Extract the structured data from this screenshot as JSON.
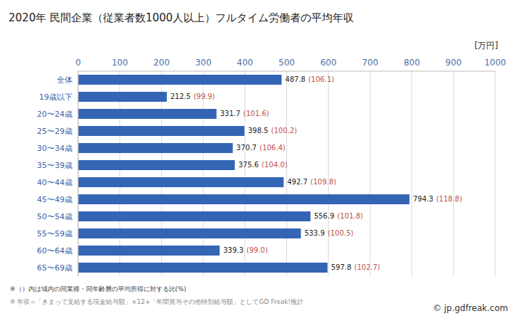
{
  "chart_data": {
    "type": "bar",
    "title": "2020年 民間企業（従業者数1000人以上）フルタイム労働者の平均年収",
    "x_label": "[万円]",
    "categories": [
      "全体",
      "19歳以下",
      "20〜24歳",
      "25〜29歳",
      "30〜34歳",
      "35〜39歳",
      "40〜44歳",
      "45〜49歳",
      "50〜54歳",
      "55〜59歳",
      "60〜64歳",
      "65〜69歳"
    ],
    "values": [
      487.8,
      212.5,
      331.7,
      398.5,
      370.7,
      375.6,
      492.7,
      794.3,
      556.9,
      533.9,
      339.3,
      597.8
    ],
    "ratios": [
      106.1,
      99.9,
      101.6,
      100.2,
      106.4,
      104.0,
      109.8,
      118.8,
      101.8,
      100.5,
      99.0,
      102.7
    ],
    "ratio_labels": [
      "(106.1)",
      "(99.9)",
      "(101.6)",
      "(100.2)",
      "(106.4)",
      "(104.0)",
      "(109.8)",
      "(118.8)",
      "(101.8)",
      "(100.5)",
      "(99.0)",
      "(102.7)"
    ],
    "color": "#3465b5",
    "orientation": "horizontal",
    "xlim": [
      0,
      1000
    ],
    "xticks": [
      0,
      100,
      200,
      300,
      400,
      500,
      600,
      700,
      800,
      900,
      1000
    ],
    "grid": true,
    "data_labels": true,
    "annotations": [
      "※（）内は域内の同業種・同年齢層の平均所得に対する比(%)",
      "※ 年収=「きまって支給する現金給与額」×12+「年間賞与その他特別給与額」としてGD Freak!推計"
    ],
    "source": "© jp.gdfreak.com"
  }
}
